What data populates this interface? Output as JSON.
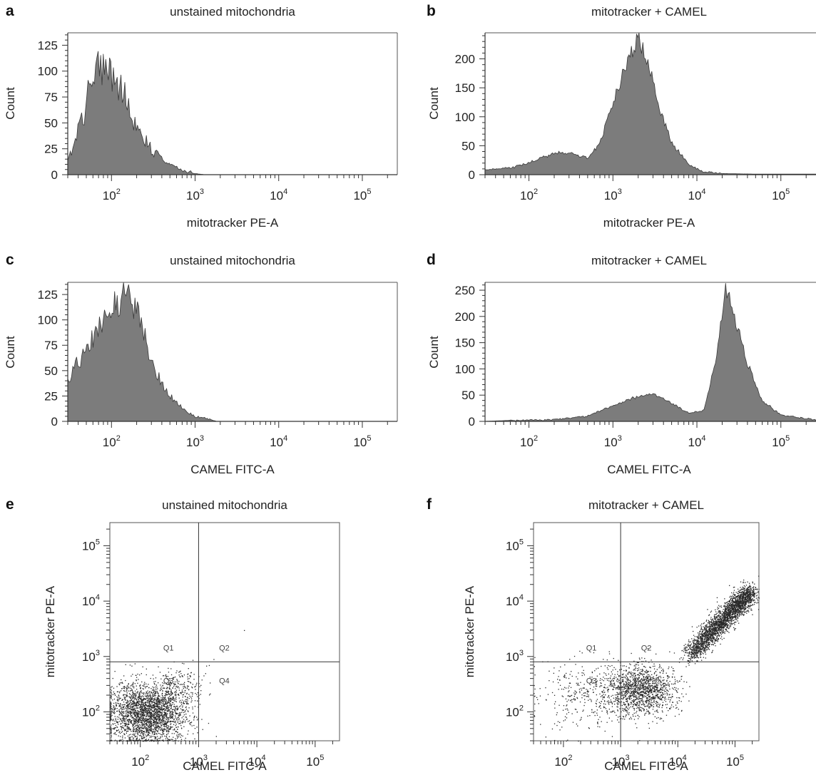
{
  "chart_data": [
    {
      "id": "a",
      "panel": "a",
      "type": "area",
      "title": "unstained mitochondria",
      "xlabel": "mitotracker PE-A",
      "ylabel": "Count",
      "xscale": "log",
      "xlim": [
        30,
        262000
      ],
      "ylim": [
        0,
        137
      ],
      "yticks": [
        0,
        25,
        50,
        75,
        100,
        125
      ],
      "xticks": [
        "10^2",
        "10^3",
        "10^4",
        "10^5"
      ],
      "profile": [
        [
          30,
          12
        ],
        [
          45,
          55
        ],
        [
          60,
          95
        ],
        [
          75,
          110
        ],
        [
          100,
          100
        ],
        [
          140,
          75
        ],
        [
          200,
          48
        ],
        [
          300,
          25
        ],
        [
          500,
          10
        ],
        [
          700,
          4
        ],
        [
          1000,
          1
        ],
        [
          1300,
          0
        ]
      ],
      "noise": 0.22,
      "series": [
        {
          "values_described": "single population peaking near 10^2 at ~125 counts"
        }
      ]
    },
    {
      "id": "b",
      "panel": "b",
      "type": "area",
      "title": "mitotracker + CAMEL",
      "xlabel": "mitotracker PE-A",
      "ylabel": "Count",
      "xscale": "log",
      "xlim": [
        30,
        262000
      ],
      "ylim": [
        0,
        245
      ],
      "yticks": [
        0,
        50,
        100,
        150,
        200
      ],
      "xticks": [
        "10^2",
        "10^3",
        "10^4",
        "10^5"
      ],
      "profile": [
        [
          30,
          8
        ],
        [
          60,
          12
        ],
        [
          100,
          20
        ],
        [
          200,
          38
        ],
        [
          300,
          38
        ],
        [
          500,
          28
        ],
        [
          700,
          55
        ],
        [
          1000,
          120
        ],
        [
          1500,
          200
        ],
        [
          2000,
          235
        ],
        [
          2700,
          190
        ],
        [
          3500,
          120
        ],
        [
          5000,
          55
        ],
        [
          8000,
          18
        ],
        [
          12000,
          5
        ],
        [
          20000,
          2
        ],
        [
          50000,
          1
        ],
        [
          262000,
          1
        ]
      ],
      "noise": 0.07,
      "series": [
        {
          "values_described": "dim shoulder ~40 near 2x10^2, main peak ~240 near 2x10^3"
        }
      ]
    },
    {
      "id": "c",
      "panel": "c",
      "type": "area",
      "title": "unstained mitochondria",
      "xlabel": "CAMEL FITC-A",
      "ylabel": "Count",
      "xscale": "log",
      "xlim": [
        30,
        262000
      ],
      "ylim": [
        0,
        137
      ],
      "yticks": [
        0,
        25,
        50,
        75,
        100,
        125
      ],
      "xticks": [
        "10^2",
        "10^3",
        "10^4",
        "10^5"
      ],
      "profile": [
        [
          30,
          42
        ],
        [
          45,
          65
        ],
        [
          70,
          95
        ],
        [
          100,
          115
        ],
        [
          140,
          125
        ],
        [
          200,
          110
        ],
        [
          300,
          60
        ],
        [
          450,
          30
        ],
        [
          700,
          12
        ],
        [
          1000,
          5
        ],
        [
          1500,
          2
        ],
        [
          1800,
          0
        ]
      ],
      "noise": 0.15,
      "series": [
        {
          "values_described": "single population peaking near 1.4x10^2 at ~125 counts"
        }
      ]
    },
    {
      "id": "d",
      "panel": "d",
      "type": "area",
      "title": "mitotracker + CAMEL",
      "xlabel": "CAMEL FITC-A",
      "ylabel": "Count",
      "xscale": "log",
      "xlim": [
        30,
        262000
      ],
      "ylim": [
        0,
        265
      ],
      "yticks": [
        0,
        50,
        100,
        150,
        200,
        250
      ],
      "xticks": [
        "10^2",
        "10^3",
        "10^4",
        "10^5"
      ],
      "profile": [
        [
          30,
          0
        ],
        [
          60,
          2
        ],
        [
          200,
          3
        ],
        [
          500,
          10
        ],
        [
          1000,
          30
        ],
        [
          2000,
          48
        ],
        [
          3000,
          52
        ],
        [
          5000,
          35
        ],
        [
          8000,
          15
        ],
        [
          12000,
          20
        ],
        [
          17000,
          120
        ],
        [
          22000,
          255
        ],
        [
          28000,
          200
        ],
        [
          40000,
          110
        ],
        [
          60000,
          40
        ],
        [
          100000,
          12
        ],
        [
          200000,
          5
        ],
        [
          262000,
          3
        ]
      ],
      "noise": 0.06,
      "series": [
        {
          "values_described": "dim population ~50 near 3x10^3, bright peak ~255 near 2.2x10^4"
        }
      ]
    },
    {
      "id": "e",
      "panel": "e",
      "type": "scatter",
      "title": "unstained mitochondria",
      "xlabel": "CAMEL FITC-A",
      "ylabel": "mitotracker PE-A",
      "xscale": "log",
      "yscale": "log",
      "xlim": [
        30,
        262000
      ],
      "ylim": [
        30,
        262000
      ],
      "xticks": [
        "10^2",
        "10^3",
        "10^4",
        "10^5"
      ],
      "yticks": [
        "10^2",
        "10^3",
        "10^4",
        "10^5"
      ],
      "gate": {
        "x": 1000,
        "y": 800
      },
      "quadrants": [
        "Q1",
        "Q2",
        "Q3",
        "Q4"
      ],
      "clusters": [
        {
          "cx": 130,
          "cy": 95,
          "sx": 0.33,
          "sy": 0.28,
          "n": 2600
        },
        {
          "cx": 450,
          "cy": 280,
          "sx": 0.18,
          "sy": 0.2,
          "n": 160
        }
      ],
      "outliers": [
        [
          6000,
          3000
        ],
        [
          1500,
          700
        ],
        [
          1800,
          900
        ],
        [
          1300,
          500
        ]
      ]
    },
    {
      "id": "f",
      "panel": "f",
      "type": "scatter",
      "title": "mitotracker + CAMEL",
      "xlabel": "CAMEL FITC-A",
      "ylabel": "mitotracker PE-A",
      "xscale": "log",
      "yscale": "log",
      "xlim": [
        30,
        262000
      ],
      "ylim": [
        30,
        262000
      ],
      "xticks": [
        "10^2",
        "10^3",
        "10^4",
        "10^5"
      ],
      "yticks": [
        "10^2",
        "10^3",
        "10^4",
        "10^5"
      ],
      "gate": {
        "x": 1000,
        "y": 800
      },
      "quadrants": [
        "Q1",
        "Q2",
        "Q3",
        "Q4"
      ],
      "clusters": [
        {
          "cx": 2200,
          "cy": 250,
          "sx": 0.3,
          "sy": 0.22,
          "n": 1300
        },
        {
          "cx": 400,
          "cy": 200,
          "sx": 0.55,
          "sy": 0.35,
          "n": 450
        }
      ],
      "diagonal": {
        "from": [
          15000,
          1000
        ],
        "to": [
          180000,
          15000
        ],
        "spread": 0.09,
        "n": 2600
      },
      "outliers": []
    }
  ]
}
